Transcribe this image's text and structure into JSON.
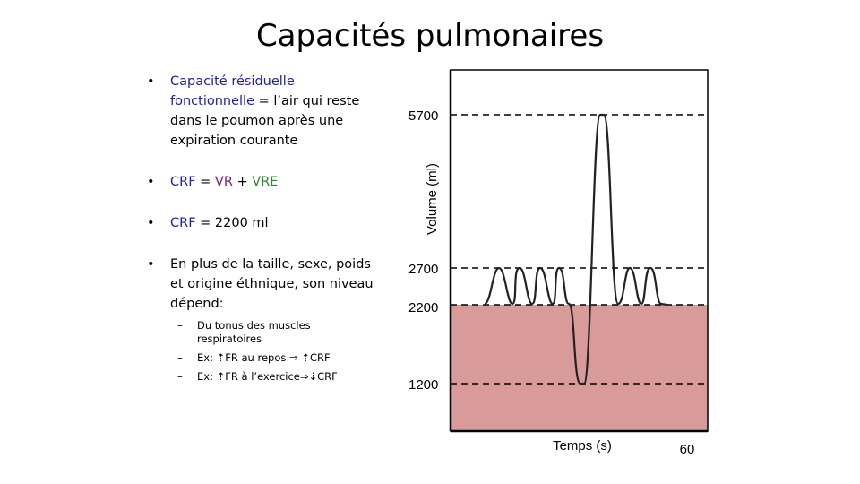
{
  "title": "Capacités pulmonaires",
  "bullets": {
    "b1_term": "Capacité résiduelle fonctionnelle",
    "b1_rest": " = l’air qui reste dans le poumon après une expiration courante",
    "b2_crf": "CRF",
    "b2_eq": " = ",
    "b2_vr": "VR",
    "b2_plus": " + ",
    "b2_vre": "VRE",
    "b3_crf": "CRF",
    "b3_rest": " = 2200 ml",
    "b4_text": "En plus de la taille, sexe, poids et origine éthnique, son niveau dépend:",
    "sub1": "Du tonus des muscles respiratoires",
    "sub2_prefix": "Ex: ",
    "sub2_fr": "FR au repos",
    "sub2_crf": "CRF",
    "sub3_prefix": "Ex: ",
    "sub3_fr": "FR  à l’exercice",
    "sub3_crf": "CRF",
    "dash": "–"
  },
  "chart": {
    "y_labels": [
      "5700",
      "2700",
      "2200",
      "1200"
    ],
    "ylabel": "Volume (ml)",
    "xlabel": "Temps (s)",
    "x_end_label": "60",
    "shade_color": "#d99a9a"
  }
}
